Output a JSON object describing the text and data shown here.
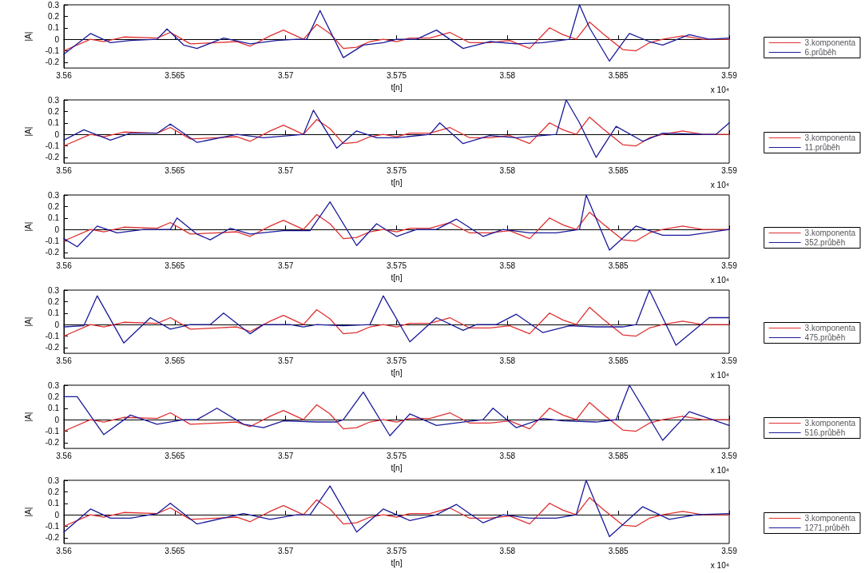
{
  "chart_data": [
    {
      "type": "line",
      "xlabel": "t[n]",
      "ylabel": "|A|",
      "annotations": [
        "x 10⁴"
      ],
      "legend": "right",
      "xlim": [
        3.56,
        3.59
      ],
      "xticks": [
        3.56,
        3.565,
        3.57,
        3.575,
        3.58,
        3.585,
        3.59
      ],
      "ylim": [
        -0.25,
        0.3
      ],
      "yticks": [
        -0.2,
        -0.1,
        0,
        0.1,
        0.2,
        0.3
      ],
      "series": [
        {
          "name": "3.komponenta",
          "color": "#e03030",
          "x": [
            3.56,
            3.5612,
            3.5618,
            3.5627,
            3.5642,
            3.5648,
            3.5657,
            3.5669,
            3.5678,
            3.5684,
            3.5693,
            3.5699,
            3.57035,
            3.5708,
            3.5714,
            3.572,
            3.5726,
            3.5732,
            3.5738,
            3.5744,
            3.575,
            3.5756,
            3.5765,
            3.5774,
            3.5783,
            3.5792,
            3.5801,
            3.581,
            3.5819,
            3.5825,
            3.5831,
            3.5837,
            3.5843,
            3.5852,
            3.5858,
            3.5864,
            3.587,
            3.5879,
            3.5888,
            3.59
          ],
          "values": [
            -0.1,
            0,
            -0.02,
            0.02,
            0.01,
            0.06,
            -0.04,
            -0.03,
            -0.02,
            -0.06,
            0.03,
            0.08,
            0.04,
            0,
            0.13,
            0.05,
            -0.08,
            -0.07,
            -0.02,
            0,
            -0.02,
            0.01,
            0.01,
            0.06,
            -0.03,
            -0.03,
            -0.01,
            -0.08,
            0.1,
            0.04,
            0,
            0.15,
            0.05,
            -0.09,
            -0.1,
            -0.03,
            0,
            0.03,
            0,
            0
          ]
        },
        {
          "name": "6.průběh",
          "color": "#1a1a9a",
          "x": [
            3.56,
            3.5612,
            3.5621,
            3.563,
            3.5642,
            3.56465,
            3.5654,
            3.566,
            3.5672,
            3.5684,
            3.5696,
            3.5705,
            3.57095,
            3.57155,
            3.5726,
            3.5735,
            3.5744,
            3.575,
            3.5759,
            3.5768,
            3.578,
            3.5792,
            3.5804,
            3.5816,
            3.5828,
            3.58325,
            3.5837,
            3.5846,
            3.5855,
            3.5864,
            3.587,
            3.5882,
            3.5891,
            3.59
          ],
          "values": [
            -0.13,
            0.05,
            -0.03,
            -0.01,
            0,
            0.09,
            -0.05,
            -0.08,
            0.01,
            -0.04,
            -0.01,
            0,
            0,
            0.25,
            -0.16,
            -0.05,
            -0.03,
            0,
            0,
            0.08,
            -0.08,
            -0.02,
            -0.04,
            -0.03,
            0,
            0.3,
            0.1,
            -0.19,
            0.05,
            -0.02,
            -0.05,
            0.04,
            0,
            0.01
          ]
        }
      ]
    },
    {
      "type": "line",
      "xlabel": "t[n]",
      "ylabel": "|A|",
      "annotations": [
        "x 10⁴"
      ],
      "legend": "right",
      "xlim": [
        3.56,
        3.59
      ],
      "xticks": [
        3.56,
        3.565,
        3.57,
        3.575,
        3.58,
        3.585,
        3.59
      ],
      "ylim": [
        -0.25,
        0.3
      ],
      "yticks": [
        -0.2,
        -0.1,
        0,
        0.1,
        0.2,
        0.3
      ],
      "series": [
        {
          "name": "3.komponenta",
          "color": "#e03030",
          "x": [
            3.56,
            3.5612,
            3.5618,
            3.5627,
            3.5642,
            3.5648,
            3.5657,
            3.5669,
            3.5678,
            3.5684,
            3.5693,
            3.5699,
            3.57035,
            3.5708,
            3.5714,
            3.572,
            3.5726,
            3.5732,
            3.5738,
            3.5744,
            3.575,
            3.5756,
            3.5765,
            3.5774,
            3.5783,
            3.5792,
            3.5801,
            3.581,
            3.5819,
            3.5825,
            3.5831,
            3.5837,
            3.5843,
            3.5852,
            3.5858,
            3.5864,
            3.587,
            3.5879,
            3.5888,
            3.59
          ],
          "values": [
            -0.1,
            0,
            -0.02,
            0.02,
            0.01,
            0.06,
            -0.04,
            -0.03,
            -0.02,
            -0.06,
            0.03,
            0.08,
            0.04,
            0,
            0.13,
            0.05,
            -0.08,
            -0.07,
            -0.02,
            0,
            -0.02,
            0.01,
            0.01,
            0.06,
            -0.03,
            -0.03,
            -0.01,
            -0.08,
            0.1,
            0.04,
            0,
            0.15,
            0.05,
            -0.09,
            -0.1,
            -0.03,
            0,
            0.03,
            0,
            0
          ]
        },
        {
          "name": "11.průběh",
          "color": "#1a1a9a",
          "x": [
            3.56,
            3.5609,
            3.5621,
            3.563,
            3.5642,
            3.5648,
            3.566,
            3.5678,
            3.569,
            3.5702,
            3.5708,
            3.57125,
            3.5723,
            3.5732,
            3.5741,
            3.575,
            3.5765,
            3.57695,
            3.578,
            3.5792,
            3.5804,
            3.5822,
            3.58265,
            3.58325,
            3.584,
            3.5849,
            3.5861,
            3.587,
            3.5888,
            3.5894,
            3.59
          ],
          "values": [
            -0.05,
            0.04,
            -0.05,
            0.01,
            0.01,
            0.09,
            -0.07,
            0,
            -0.03,
            -0.01,
            0,
            0.21,
            -0.12,
            0.03,
            -0.03,
            -0.03,
            0,
            0.1,
            -0.08,
            -0.01,
            -0.03,
            0,
            0.3,
            0.1,
            -0.2,
            0.07,
            -0.06,
            0.01,
            0,
            0,
            0.1
          ]
        }
      ]
    },
    {
      "type": "line",
      "xlabel": "t[n]",
      "ylabel": "|A|",
      "annotations": [
        "x 10⁴"
      ],
      "legend": "right",
      "xlim": [
        3.56,
        3.59
      ],
      "xticks": [
        3.56,
        3.565,
        3.57,
        3.575,
        3.58,
        3.585,
        3.59
      ],
      "ylim": [
        -0.25,
        0.3
      ],
      "yticks": [
        -0.2,
        -0.1,
        0,
        0.1,
        0.2,
        0.3
      ],
      "series": [
        {
          "name": "3.komponenta",
          "color": "#e03030",
          "x": [
            3.56,
            3.5612,
            3.5618,
            3.5627,
            3.5642,
            3.5648,
            3.5657,
            3.5669,
            3.5678,
            3.5684,
            3.5693,
            3.5699,
            3.57035,
            3.5708,
            3.5714,
            3.572,
            3.5726,
            3.5732,
            3.5738,
            3.5744,
            3.575,
            3.5756,
            3.5765,
            3.5774,
            3.5783,
            3.5792,
            3.5801,
            3.581,
            3.5819,
            3.5825,
            3.5831,
            3.5837,
            3.5843,
            3.5852,
            3.5858,
            3.5864,
            3.587,
            3.5879,
            3.5888,
            3.59
          ],
          "values": [
            -0.1,
            0,
            -0.02,
            0.02,
            0.01,
            0.06,
            -0.04,
            -0.03,
            -0.02,
            -0.06,
            0.03,
            0.08,
            0.04,
            0,
            0.13,
            0.05,
            -0.08,
            -0.07,
            -0.02,
            0,
            -0.02,
            0.01,
            0.01,
            0.06,
            -0.03,
            -0.03,
            -0.01,
            -0.08,
            0.1,
            0.04,
            0,
            0.15,
            0.05,
            -0.09,
            -0.1,
            -0.03,
            0,
            0.03,
            0,
            0
          ]
        },
        {
          "name": "352.průběh",
          "color": "#1a1a9a",
          "x": [
            3.56,
            3.5606,
            3.5615,
            3.5624,
            3.5636,
            3.5648,
            3.5651,
            3.566,
            3.5666,
            3.5675,
            3.5684,
            3.5699,
            3.5711,
            3.572,
            3.5732,
            3.5741,
            3.575,
            3.5759,
            3.5768,
            3.5777,
            3.5789,
            3.5798,
            3.581,
            3.5822,
            3.58325,
            3.58355,
            3.5846,
            3.5858,
            3.587,
            3.5882,
            3.59
          ],
          "values": [
            -0.08,
            -0.15,
            0.03,
            -0.03,
            0,
            0,
            0.1,
            -0.04,
            -0.09,
            0.01,
            -0.04,
            -0.01,
            -0.01,
            0.24,
            -0.14,
            0.05,
            -0.06,
            0,
            0,
            0.09,
            -0.06,
            0,
            -0.03,
            -0.03,
            0,
            0.3,
            -0.18,
            0.03,
            -0.05,
            -0.05,
            0
          ]
        }
      ]
    },
    {
      "type": "line",
      "xlabel": "t[n]",
      "ylabel": "|A|",
      "annotations": [
        "x 10⁴"
      ],
      "legend": "right",
      "xlim": [
        3.56,
        3.59
      ],
      "xticks": [
        3.56,
        3.565,
        3.57,
        3.575,
        3.58,
        3.585,
        3.59
      ],
      "ylim": [
        -0.25,
        0.3
      ],
      "yticks": [
        -0.2,
        -0.1,
        0,
        0.1,
        0.2,
        0.3
      ],
      "series": [
        {
          "name": "3.komponenta",
          "color": "#e03030",
          "x": [
            3.56,
            3.5612,
            3.5618,
            3.5627,
            3.5642,
            3.5648,
            3.5657,
            3.5669,
            3.5678,
            3.5684,
            3.5693,
            3.5699,
            3.57035,
            3.5708,
            3.5714,
            3.572,
            3.5726,
            3.5732,
            3.5738,
            3.5744,
            3.575,
            3.5756,
            3.5765,
            3.5774,
            3.5783,
            3.5792,
            3.5801,
            3.581,
            3.5819,
            3.5825,
            3.5831,
            3.5837,
            3.5843,
            3.5852,
            3.5858,
            3.5864,
            3.587,
            3.5879,
            3.5888,
            3.59
          ],
          "values": [
            -0.1,
            0,
            -0.02,
            0.02,
            0.01,
            0.06,
            -0.04,
            -0.03,
            -0.02,
            -0.06,
            0.03,
            0.08,
            0.04,
            0,
            0.13,
            0.05,
            -0.08,
            -0.07,
            -0.02,
            0,
            -0.02,
            0.01,
            0.01,
            0.06,
            -0.03,
            -0.03,
            -0.01,
            -0.08,
            0.1,
            0.04,
            0,
            0.15,
            0.05,
            -0.09,
            -0.1,
            -0.03,
            0,
            0.03,
            0,
            0
          ]
        },
        {
          "name": "475.průběh",
          "color": "#1a1a9a",
          "x": [
            3.56,
            3.5609,
            3.5615,
            3.5627,
            3.5639,
            3.5648,
            3.5657,
            3.5666,
            3.5672,
            3.5684,
            3.569,
            3.5702,
            3.5708,
            3.5714,
            3.5726,
            3.5738,
            3.5744,
            3.5756,
            3.5768,
            3.578,
            3.5786,
            3.5795,
            3.5804,
            3.5816,
            3.5828,
            3.584,
            3.5852,
            3.5858,
            3.5864,
            3.5876,
            3.5891,
            3.59
          ],
          "values": [
            -0.02,
            -0.01,
            0.25,
            -0.16,
            0.06,
            -0.04,
            0,
            0,
            0.1,
            -0.08,
            0,
            0,
            -0.02,
            0,
            -0.01,
            0,
            0.25,
            -0.15,
            0.06,
            -0.05,
            0,
            0,
            0.09,
            -0.07,
            -0.01,
            -0.02,
            -0.02,
            0,
            0.3,
            -0.18,
            0.06,
            0.06
          ]
        }
      ]
    },
    {
      "type": "line",
      "xlabel": "t[n]",
      "ylabel": "|A|",
      "annotations": [
        "x 10⁴"
      ],
      "legend": "right",
      "xlim": [
        3.56,
        3.59
      ],
      "xticks": [
        3.56,
        3.565,
        3.57,
        3.575,
        3.58,
        3.585,
        3.59
      ],
      "ylim": [
        -0.25,
        0.3
      ],
      "yticks": [
        -0.2,
        -0.1,
        0,
        0.1,
        0.2,
        0.3
      ],
      "series": [
        {
          "name": "3.komponenta",
          "color": "#e03030",
          "x": [
            3.56,
            3.5612,
            3.5618,
            3.5627,
            3.5642,
            3.5648,
            3.5657,
            3.5669,
            3.5678,
            3.5684,
            3.5693,
            3.5699,
            3.57035,
            3.5708,
            3.5714,
            3.572,
            3.5726,
            3.5732,
            3.5738,
            3.5744,
            3.575,
            3.5756,
            3.5765,
            3.5774,
            3.5783,
            3.5792,
            3.5801,
            3.581,
            3.5819,
            3.5825,
            3.5831,
            3.5837,
            3.5843,
            3.5852,
            3.5858,
            3.5864,
            3.587,
            3.5879,
            3.5888,
            3.59
          ],
          "values": [
            -0.1,
            0,
            -0.02,
            0.02,
            0.01,
            0.06,
            -0.04,
            -0.03,
            -0.02,
            -0.06,
            0.03,
            0.08,
            0.04,
            0,
            0.13,
            0.05,
            -0.08,
            -0.07,
            -0.02,
            0,
            -0.02,
            0.01,
            0.01,
            0.06,
            -0.03,
            -0.03,
            -0.01,
            -0.08,
            0.1,
            0.04,
            0,
            0.15,
            0.05,
            -0.09,
            -0.1,
            -0.03,
            0,
            0.03,
            0,
            0
          ]
        },
        {
          "name": "516.průběh",
          "color": "#1a1a9a",
          "x": [
            3.56,
            3.5606,
            3.5618,
            3.563,
            3.5642,
            3.5654,
            3.566,
            3.5669,
            3.5681,
            3.569,
            3.5699,
            3.5714,
            3.5723,
            3.5726,
            3.5735,
            3.5747,
            3.5756,
            3.5768,
            3.578,
            3.5789,
            3.57935,
            3.5804,
            3.5816,
            3.5825,
            3.584,
            3.5849,
            3.5855,
            3.587,
            3.5882,
            3.59
          ],
          "values": [
            0.2,
            0.2,
            -0.13,
            0.04,
            -0.04,
            0,
            0,
            0.1,
            -0.04,
            -0.07,
            -0.01,
            -0.02,
            -0.02,
            0,
            0.24,
            -0.14,
            0.05,
            -0.05,
            -0.02,
            0,
            0.1,
            -0.07,
            0.01,
            -0.01,
            -0.02,
            0,
            0.3,
            -0.18,
            0.07,
            -0.05
          ]
        }
      ]
    },
    {
      "type": "line",
      "xlabel": "t[n]",
      "ylabel": "|A|",
      "annotations": [
        "x 10⁴"
      ],
      "legend": "right",
      "xlim": [
        3.56,
        3.59
      ],
      "xticks": [
        3.56,
        3.565,
        3.57,
        3.575,
        3.58,
        3.585,
        3.59
      ],
      "ylim": [
        -0.25,
        0.3
      ],
      "yticks": [
        -0.2,
        -0.1,
        0,
        0.1,
        0.2,
        0.3
      ],
      "series": [
        {
          "name": "3.komponenta",
          "color": "#e03030",
          "x": [
            3.56,
            3.5612,
            3.5618,
            3.5627,
            3.5642,
            3.5648,
            3.5657,
            3.5669,
            3.5678,
            3.5684,
            3.5693,
            3.5699,
            3.57035,
            3.5708,
            3.5714,
            3.572,
            3.5726,
            3.5732,
            3.5738,
            3.5744,
            3.575,
            3.5756,
            3.5765,
            3.5774,
            3.5783,
            3.5792,
            3.5801,
            3.581,
            3.5819,
            3.5825,
            3.5831,
            3.5837,
            3.5843,
            3.5852,
            3.5858,
            3.5864,
            3.587,
            3.5879,
            3.5888,
            3.59
          ],
          "values": [
            -0.1,
            0,
            -0.02,
            0.02,
            0.01,
            0.06,
            -0.04,
            -0.03,
            -0.02,
            -0.06,
            0.03,
            0.08,
            0.04,
            0,
            0.13,
            0.05,
            -0.08,
            -0.07,
            -0.02,
            0,
            -0.02,
            0.01,
            0.01,
            0.06,
            -0.03,
            -0.03,
            -0.01,
            -0.08,
            0.1,
            0.04,
            0,
            0.15,
            0.05,
            -0.09,
            -0.1,
            -0.03,
            0,
            0.03,
            0,
            0
          ]
        },
        {
          "name": "1271.průběh",
          "color": "#1a1a9a",
          "x": [
            3.56,
            3.5612,
            3.5621,
            3.563,
            3.5642,
            3.5648,
            3.566,
            3.5681,
            3.5693,
            3.5705,
            3.5711,
            3.572,
            3.5732,
            3.5744,
            3.5756,
            3.5768,
            3.5777,
            3.5789,
            3.5798,
            3.581,
            3.5822,
            3.5831,
            3.58355,
            3.5846,
            3.5861,
            3.5873,
            3.5885,
            3.59
          ],
          "values": [
            -0.15,
            0.05,
            -0.03,
            -0.03,
            0.01,
            0.1,
            -0.08,
            0.01,
            -0.04,
            0,
            0,
            0.25,
            -0.15,
            0.05,
            -0.05,
            0,
            0.09,
            -0.07,
            0,
            -0.03,
            -0.03,
            0,
            0.3,
            -0.19,
            0.07,
            -0.04,
            0,
            0.01
          ]
        }
      ]
    }
  ]
}
